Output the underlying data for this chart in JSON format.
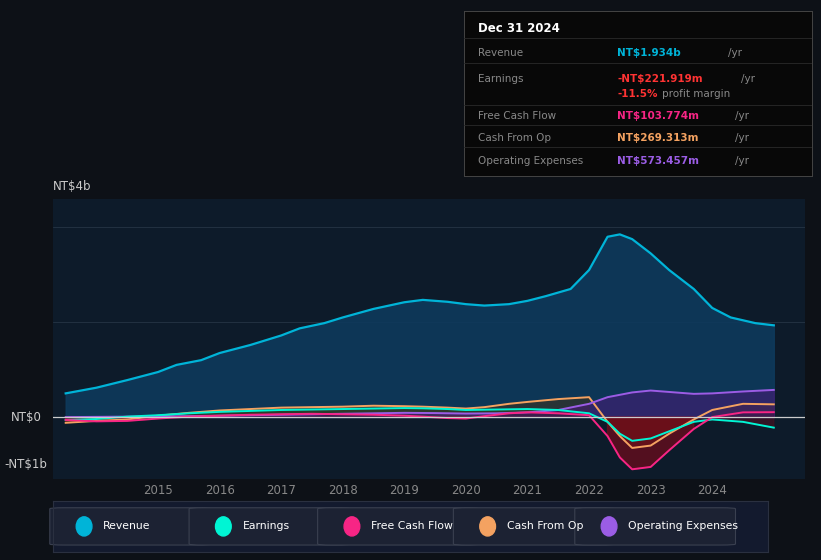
{
  "background_color": "#0d1117",
  "chart_bg": "#0d1b2a",
  "revenue_color": "#00b4d8",
  "earnings_color": "#00f5d4",
  "fcf_color": "#f72585",
  "cashfromop_color": "#f4a261",
  "opex_color": "#9b5de5",
  "revenue_fill": "#0d3a5c",
  "zero_line_color": "#cccccc",
  "grid_color": "#2a3a4a",
  "text_color": "#888888",
  "text_color_bright": "#cccccc",
  "ylim": [
    -1300,
    4600
  ],
  "xlim_start": 2013.3,
  "xlim_end": 2025.5,
  "xtick_years": [
    2015,
    2016,
    2017,
    2018,
    2019,
    2020,
    2021,
    2022,
    2023,
    2024
  ],
  "revenue_x": [
    2013.5,
    2014.0,
    2014.5,
    2015.0,
    2015.3,
    2015.7,
    2016.0,
    2016.5,
    2017.0,
    2017.3,
    2017.7,
    2018.0,
    2018.5,
    2019.0,
    2019.3,
    2019.5,
    2019.7,
    2020.0,
    2020.3,
    2020.7,
    2021.0,
    2021.3,
    2021.7,
    2022.0,
    2022.3,
    2022.5,
    2022.7,
    2023.0,
    2023.3,
    2023.7,
    2024.0,
    2024.3,
    2024.7,
    2025.0
  ],
  "revenue_y": [
    500,
    620,
    780,
    950,
    1100,
    1200,
    1350,
    1520,
    1720,
    1870,
    1980,
    2100,
    2280,
    2420,
    2470,
    2450,
    2430,
    2380,
    2350,
    2380,
    2450,
    2550,
    2700,
    3100,
    3800,
    3850,
    3750,
    3450,
    3100,
    2700,
    2300,
    2100,
    1980,
    1934
  ],
  "earnings_x": [
    2013.5,
    2014.0,
    2014.5,
    2015.0,
    2015.5,
    2016.0,
    2016.5,
    2017.0,
    2017.5,
    2018.0,
    2018.5,
    2019.0,
    2019.3,
    2019.7,
    2020.0,
    2020.5,
    2021.0,
    2021.5,
    2022.0,
    2022.3,
    2022.5,
    2022.7,
    2023.0,
    2023.3,
    2023.7,
    2024.0,
    2024.5,
    2025.0
  ],
  "earnings_y": [
    -60,
    -40,
    10,
    40,
    80,
    110,
    130,
    150,
    160,
    170,
    180,
    190,
    185,
    170,
    150,
    160,
    170,
    150,
    80,
    -100,
    -350,
    -500,
    -450,
    -300,
    -100,
    -50,
    -100,
    -222
  ],
  "fcf_x": [
    2013.5,
    2014.0,
    2014.5,
    2015.0,
    2015.5,
    2016.0,
    2016.5,
    2017.0,
    2017.5,
    2018.0,
    2018.5,
    2019.0,
    2019.3,
    2019.7,
    2020.0,
    2020.3,
    2020.7,
    2021.0,
    2021.5,
    2022.0,
    2022.3,
    2022.5,
    2022.7,
    2023.0,
    2023.3,
    2023.7,
    2024.0,
    2024.5,
    2025.0
  ],
  "fcf_y": [
    -60,
    -90,
    -80,
    -30,
    10,
    30,
    50,
    60,
    70,
    60,
    50,
    30,
    10,
    -20,
    -30,
    20,
    80,
    100,
    80,
    40,
    -400,
    -850,
    -1100,
    -1050,
    -700,
    -250,
    0,
    100,
    104
  ],
  "cashfromop_x": [
    2013.5,
    2014.0,
    2014.5,
    2015.0,
    2015.5,
    2016.0,
    2016.5,
    2017.0,
    2017.5,
    2018.0,
    2018.5,
    2019.0,
    2019.3,
    2019.7,
    2020.0,
    2020.3,
    2020.7,
    2021.0,
    2021.5,
    2022.0,
    2022.3,
    2022.5,
    2022.7,
    2023.0,
    2023.3,
    2023.7,
    2024.0,
    2024.5,
    2025.0
  ],
  "cashfromop_y": [
    -120,
    -80,
    -50,
    30,
    90,
    140,
    170,
    200,
    210,
    220,
    240,
    230,
    220,
    200,
    180,
    210,
    280,
    320,
    380,
    420,
    -100,
    -400,
    -650,
    -600,
    -350,
    -50,
    150,
    280,
    269
  ],
  "opex_x": [
    2013.5,
    2014.0,
    2014.5,
    2015.0,
    2015.5,
    2016.0,
    2016.5,
    2017.0,
    2017.5,
    2018.0,
    2018.5,
    2019.0,
    2019.5,
    2020.0,
    2020.5,
    2021.0,
    2021.5,
    2022.0,
    2022.3,
    2022.7,
    2023.0,
    2023.3,
    2023.7,
    2024.0,
    2024.5,
    2025.0
  ],
  "opex_y": [
    0,
    5,
    10,
    15,
    20,
    30,
    40,
    50,
    60,
    70,
    80,
    90,
    85,
    75,
    80,
    100,
    150,
    280,
    420,
    520,
    560,
    530,
    490,
    500,
    540,
    573
  ]
}
